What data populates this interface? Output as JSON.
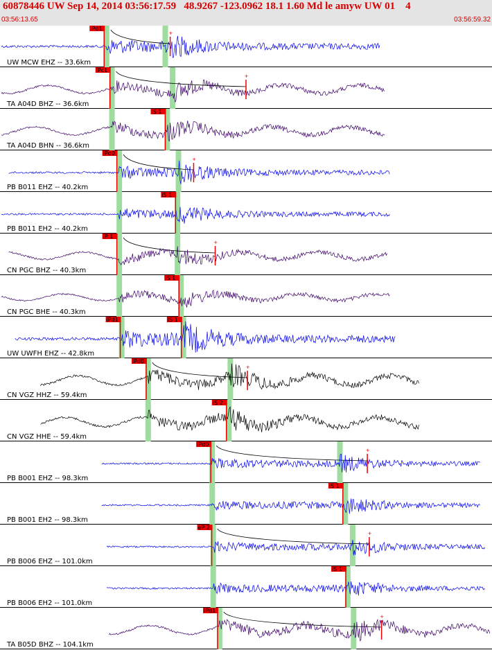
{
  "header": {
    "title": "60878446 UW Sep 14, 2014 03:56:17.59   48.9267 -123.0962 18.1 1.60 Md le amyw UW 01    4",
    "time_start": "03:56:13.65",
    "time_end": "03:56:59.32"
  },
  "chart_data": {
    "type": "seismogram",
    "x_range": [
      "03:56:13.65",
      "03:56:59.32"
    ],
    "colors": {
      "blue": "#0000ee",
      "purple": "#3a0066",
      "black": "#000000",
      "pick": "#ee0000",
      "window": "#9fdc9f"
    },
    "traces": [
      {
        "label": "UW MCW EHZ -- 33.6km",
        "color": "blue",
        "amp": 0.75,
        "x0": 0.0,
        "x1": 0.775,
        "p": 0.215,
        "s": 0.335,
        "picks": [
          {
            "label": "iPd1",
            "x": 0.21
          },
          {
            "label": "",
            "x": 0.345
          }
        ]
      },
      {
        "label": "TA A04D BHZ -- 36.6km",
        "color": "purple",
        "amp": 0.55,
        "x0": 0.0,
        "x1": 0.785,
        "p": 0.226,
        "s": 0.35,
        "picks": [
          {
            "label": "iPc1",
            "x": 0.222
          },
          {
            "label": "",
            "x": 0.5
          }
        ]
      },
      {
        "label": "TA A04D BHN -- 36.6km",
        "color": "purple",
        "amp": 0.55,
        "x0": 0.0,
        "x1": 0.785,
        "p": 0.226,
        "s": 0.339,
        "picks": [
          {
            "label": "iS 1",
            "x": 0.335
          }
        ]
      },
      {
        "label": "PB B011 EHZ -- 40.2km",
        "color": "blue",
        "amp": 0.6,
        "x0": 0.015,
        "x1": 0.795,
        "p": 0.241,
        "s": 0.362,
        "picks": [
          {
            "label": "iPd0",
            "x": 0.236
          },
          {
            "label": "",
            "x": 0.393
          }
        ]
      },
      {
        "label": "PB B011 EH2 -- 40.2km",
        "color": "blue",
        "amp": 0.55,
        "x0": 0.0,
        "x1": 0.795,
        "p": 0.241,
        "s": 0.36,
        "picks": [
          {
            "label": "iS 1",
            "x": 0.356
          }
        ]
      },
      {
        "label": "CN PGC BHZ -- 40.3km",
        "color": "purple",
        "amp": 0.5,
        "x0": 0.015,
        "x1": 0.79,
        "p": 0.241,
        "s": 0.36,
        "picks": [
          {
            "label": "iP 1",
            "x": 0.236
          },
          {
            "label": "",
            "x": 0.437
          }
        ]
      },
      {
        "label": "CN PGC BHE -- 40.3km",
        "color": "purple",
        "amp": 0.45,
        "x0": 0.0,
        "x1": 0.795,
        "p": 0.241,
        "s": 0.367,
        "picks": [
          {
            "label": "iS 1",
            "x": 0.363
          }
        ]
      },
      {
        "label": "UW UWFH EHZ -- 42.8km",
        "color": "blue",
        "amp": 0.9,
        "x0": 0.028,
        "x1": 0.805,
        "p": 0.246,
        "s": 0.372,
        "picks": [
          {
            "label": "iPd1",
            "x": 0.243
          },
          {
            "label": "iS 1",
            "x": 0.368
          }
        ]
      },
      {
        "label": "CN VGZ HHZ -- 59.4km",
        "color": "black",
        "amp": 0.65,
        "x0": 0.08,
        "x1": 0.855,
        "p": 0.3,
        "s": 0.468,
        "picks": [
          {
            "label": "iPd0",
            "x": 0.296
          },
          {
            "label": "",
            "x": 0.503
          }
        ]
      },
      {
        "label": "CN VGZ HHE -- 59.4km",
        "color": "black",
        "amp": 0.65,
        "x0": 0.08,
        "x1": 0.855,
        "p": 0.3,
        "s": 0.465,
        "picks": [
          {
            "label": "iS 2",
            "x": 0.46
          }
        ]
      },
      {
        "label": "PB B001 EHZ -- 98.3km",
        "color": "blue",
        "amp": 0.5,
        "x0": 0.205,
        "x1": 0.98,
        "p": 0.431,
        "s": 0.692,
        "picks": [
          {
            "label": "iPd0",
            "x": 0.428
          },
          {
            "label": "",
            "x": 0.748
          }
        ]
      },
      {
        "label": "PB B001 EH2 -- 98.3km",
        "color": "blue",
        "amp": 0.5,
        "x0": 0.205,
        "x1": 0.98,
        "p": 0.431,
        "s": 0.703,
        "picks": [
          {
            "label": "iS 1",
            "x": 0.698
          }
        ]
      },
      {
        "label": "PB B006 EHZ -- 101.0km",
        "color": "blue",
        "amp": 0.5,
        "x0": 0.215,
        "x1": 0.99,
        "p": 0.433,
        "s": 0.718,
        "picks": [
          {
            "label": "eP 2",
            "x": 0.43
          },
          {
            "label": "",
            "x": 0.752
          }
        ]
      },
      {
        "label": "PB B006 EH2 -- 101.0km",
        "color": "blue",
        "amp": 0.5,
        "x0": 0.215,
        "x1": 0.99,
        "p": 0.433,
        "s": 0.708,
        "picks": [
          {
            "label": "iS 1",
            "x": 0.704
          }
        ]
      },
      {
        "label": "TA B05D BHZ -- 104.1km",
        "color": "purple",
        "amp": 0.6,
        "x0": 0.22,
        "x1": 1.0,
        "p": 0.446,
        "s": 0.72,
        "picks": [
          {
            "label": "iPd1",
            "x": 0.442
          },
          {
            "label": "",
            "x": 0.777
          }
        ]
      }
    ]
  }
}
